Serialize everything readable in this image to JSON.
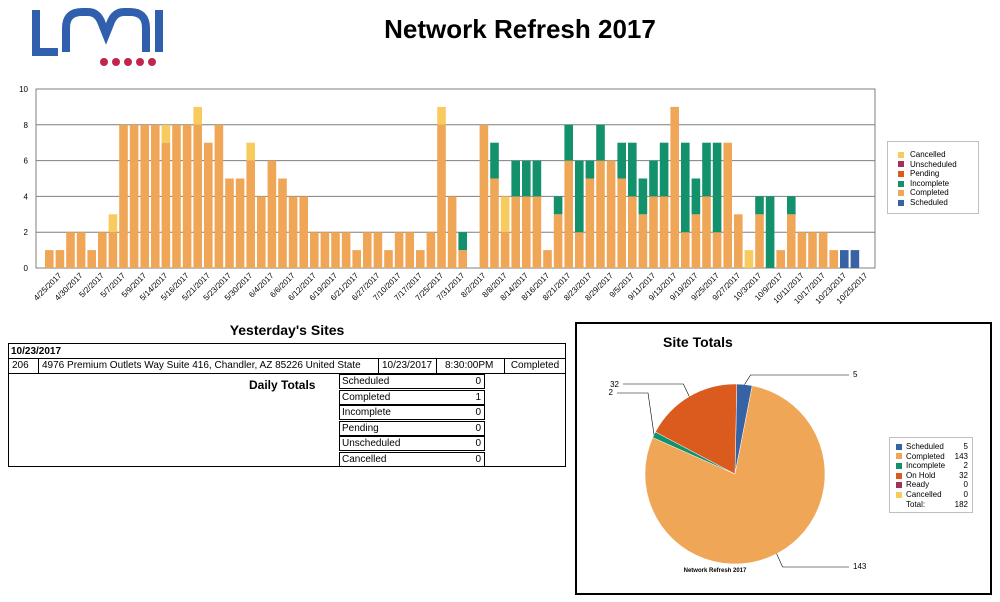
{
  "title": "Network Refresh 2017",
  "logo": {
    "letters": "LMI",
    "dots": 5
  },
  "colors": {
    "cancelled": "#f8cb5e",
    "unscheduled": "#a3325a",
    "pending": "#db5a1d",
    "incomplete": "#13906c",
    "completed": "#f0a657",
    "scheduled": "#3763a5",
    "logo_blue": "#2f5fad",
    "logo_red": "#c0264c"
  },
  "chart_data": {
    "type": "bar",
    "stacked": true,
    "ylim": [
      0,
      10
    ],
    "yticks": [
      "0",
      "2",
      "4",
      "6",
      "8",
      "10"
    ],
    "grid": true,
    "legend_position": "right",
    "x_tick_labels": [
      "4/25/2017",
      "4/30/2017",
      "5/2/2017",
      "5/7/2017",
      "5/9/2017",
      "5/14/2017",
      "5/16/2017",
      "5/21/2017",
      "5/23/2017",
      "5/30/2017",
      "6/4/2017",
      "6/6/2017",
      "6/12/2017",
      "6/19/2017",
      "6/21/2017",
      "6/27/2017",
      "7/10/2017",
      "7/17/2017",
      "7/25/2017",
      "7/31/2017",
      "8/2/2017",
      "8/8/2017",
      "8/14/2017",
      "8/16/2017",
      "8/21/2017",
      "8/23/2017",
      "8/29/2017",
      "9/5/2017",
      "9/11/2017",
      "9/13/2017",
      "9/19/2017",
      "9/25/2017",
      "9/27/2017",
      "10/3/2017",
      "10/9/2017",
      "10/11/2017",
      "10/17/2017",
      "10/23/2017",
      "10/25/2017"
    ],
    "series": [
      {
        "name": "Completed",
        "values": [
          1,
          1,
          2,
          2,
          1,
          2,
          2,
          8,
          8,
          8,
          8,
          7,
          8,
          8,
          8,
          7,
          8,
          5,
          5,
          6,
          4,
          6,
          5,
          4,
          4,
          2,
          2,
          2,
          2,
          1,
          2,
          2,
          1,
          2,
          2,
          1,
          2,
          8,
          4,
          1,
          0,
          8,
          5,
          2,
          4,
          4,
          4,
          1,
          3,
          6,
          2,
          5,
          6,
          6,
          5,
          4,
          3,
          4,
          4,
          9,
          2,
          3,
          4,
          2,
          7,
          3,
          0,
          3,
          0,
          1,
          3,
          2,
          2,
          2,
          1,
          0,
          0
        ]
      },
      {
        "name": "Incomplete",
        "values": [
          0,
          0,
          0,
          0,
          0,
          0,
          0,
          0,
          0,
          0,
          0,
          0,
          0,
          0,
          0,
          0,
          0,
          0,
          0,
          0,
          0,
          0,
          0,
          0,
          0,
          0,
          0,
          0,
          0,
          0,
          0,
          0,
          0,
          0,
          0,
          0,
          0,
          0,
          0,
          1,
          0,
          0,
          2,
          0,
          2,
          2,
          2,
          0,
          1,
          2,
          4,
          1,
          2,
          0,
          2,
          3,
          2,
          2,
          3,
          0,
          5,
          2,
          3,
          5,
          0,
          0,
          0,
          1,
          4,
          0,
          1,
          0,
          0,
          0,
          0,
          0,
          0
        ]
      },
      {
        "name": "Cancelled",
        "values": [
          0,
          0,
          0,
          0,
          0,
          0,
          1,
          0,
          0,
          0,
          0,
          1,
          0,
          0,
          1,
          0,
          0,
          0,
          0,
          1,
          0,
          0,
          0,
          0,
          0,
          0,
          0,
          0,
          0,
          0,
          0,
          0,
          0,
          0,
          0,
          0,
          0,
          1,
          0,
          0,
          0,
          0,
          0,
          2,
          0,
          0,
          0,
          0,
          0,
          0,
          0,
          0,
          0,
          0,
          0,
          0,
          0,
          0,
          0,
          0,
          0,
          0,
          0,
          0,
          0,
          0,
          1,
          0,
          0,
          0,
          0,
          0,
          0,
          0,
          0,
          0,
          0
        ]
      },
      {
        "name": "Scheduled",
        "values": [
          0,
          0,
          0,
          0,
          0,
          0,
          0,
          0,
          0,
          0,
          0,
          0,
          0,
          0,
          0,
          0,
          0,
          0,
          0,
          0,
          0,
          0,
          0,
          0,
          0,
          0,
          0,
          0,
          0,
          0,
          0,
          0,
          0,
          0,
          0,
          0,
          0,
          0,
          0,
          0,
          0,
          0,
          0,
          0,
          0,
          0,
          0,
          0,
          0,
          0,
          0,
          0,
          0,
          0,
          0,
          0,
          0,
          0,
          0,
          0,
          0,
          0,
          0,
          0,
          0,
          0,
          0,
          0,
          0,
          0,
          0,
          0,
          0,
          0,
          0,
          1,
          1
        ]
      }
    ],
    "legend": [
      "Cancelled",
      "Unscheduled",
      "Pending",
      "Incomplete",
      "Completed",
      "Scheduled"
    ]
  },
  "yesterday": {
    "title": "Yesterday's Sites",
    "date": "10/23/2017",
    "row": {
      "id": "206",
      "address": "4976 Premium Outlets Way Suite 416, Chandler, AZ 85226 United State",
      "date": "10/23/2017",
      "time": "8:30:00PM",
      "status": "Completed"
    },
    "daily_label": "Daily Totals",
    "daily": [
      {
        "name": "Scheduled",
        "value": "0"
      },
      {
        "name": "Completed",
        "value": "1"
      },
      {
        "name": "Incomplete",
        "value": "0"
      },
      {
        "name": "Pending",
        "value": "0"
      },
      {
        "name": "Unscheduled",
        "value": "0"
      },
      {
        "name": "Cancelled",
        "value": "0"
      }
    ]
  },
  "site_totals": {
    "title": "Site Totals",
    "pie_label": "Network Refresh 2017",
    "callouts": [
      "5",
      "32",
      "2",
      "143"
    ],
    "legend": [
      {
        "name": "Scheduled",
        "value": "5",
        "color": "#3763a5"
      },
      {
        "name": "Completed",
        "value": "143",
        "color": "#f0a657"
      },
      {
        "name": "Incomplete",
        "value": "2",
        "color": "#13906c"
      },
      {
        "name": "On Hold",
        "value": "32",
        "color": "#db5a1d"
      },
      {
        "name": "Ready",
        "value": "0",
        "color": "#a3325a"
      },
      {
        "name": "Cancelled",
        "value": "0",
        "color": "#f8cb5e"
      }
    ],
    "total_label": "Total:",
    "total_value": "182",
    "chart_data": {
      "type": "pie",
      "labels": [
        "Scheduled",
        "Completed",
        "Incomplete",
        "On Hold",
        "Ready",
        "Cancelled"
      ],
      "values": [
        5,
        143,
        2,
        32,
        0,
        0
      ]
    }
  }
}
